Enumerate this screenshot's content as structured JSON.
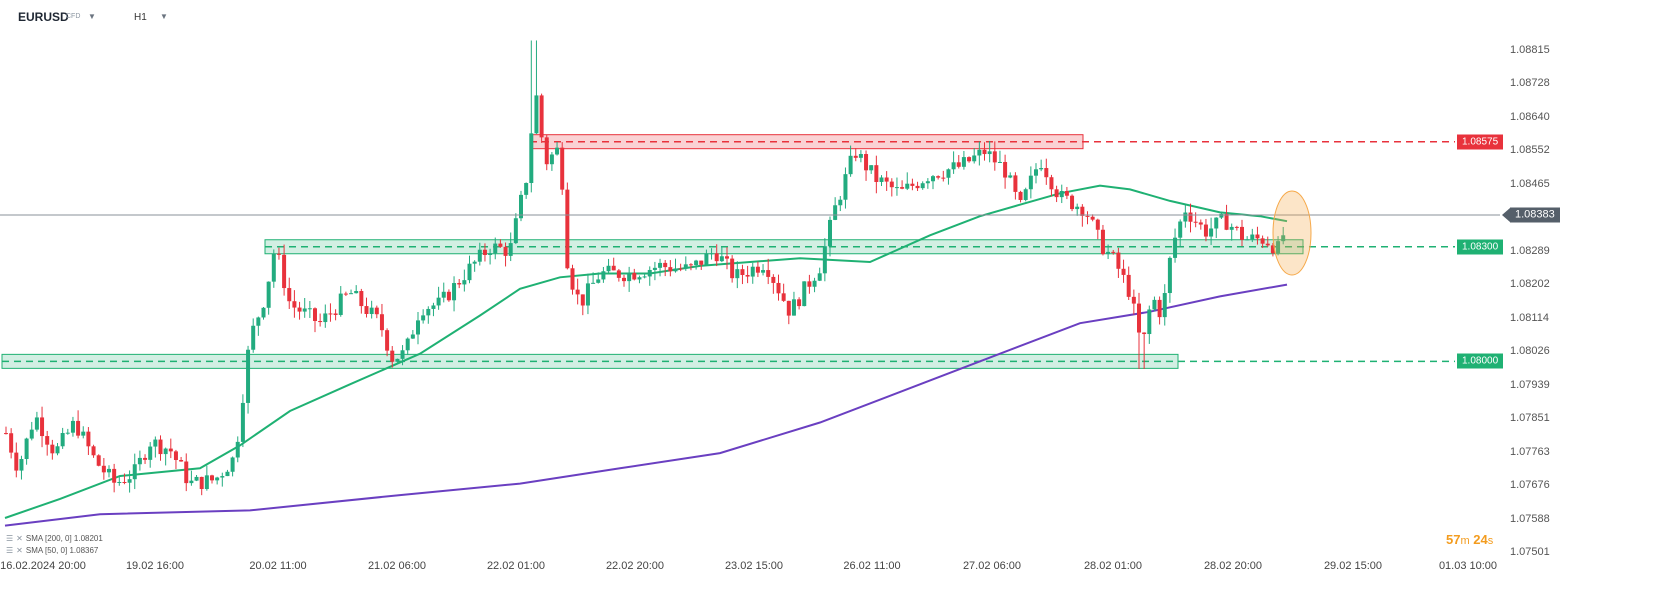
{
  "header": {
    "symbol": "EURUSD",
    "symbol_type": "CFD",
    "timeframe": "H1"
  },
  "colors": {
    "bull": "#22ab7f",
    "bear": "#e8323c",
    "sma50": "#1fb173",
    "sma200": "#6a3fc1",
    "resistance": "#e8323c",
    "support": "#1fb173",
    "current": "#555f6a",
    "highlight": "#f6a94a"
  },
  "y_axis": {
    "ticks": [
      "1.08815",
      "1.08728",
      "1.08640",
      "1.08552",
      "1.08465",
      "1.08383",
      "1.08289",
      "1.08202",
      "1.08114",
      "1.08026",
      "1.07939",
      "1.07851",
      "1.07763",
      "1.07676",
      "1.07588",
      "1.07501"
    ]
  },
  "x_axis": {
    "ticks": [
      "16.02.2024 20:00",
      "19.02 16:00",
      "20.02 11:00",
      "21.02 06:00",
      "22.02 01:00",
      "22.02 20:00",
      "23.02 15:00",
      "26.02 11:00",
      "27.02 06:00",
      "28.02 01:00",
      "28.02 20:00",
      "29.02 15:00",
      "01.03 10:00"
    ]
  },
  "levels": {
    "resistance": "1.08575",
    "current": "1.08383",
    "support_1": "1.08300",
    "support_2": "1.08000"
  },
  "legend": {
    "sma200": "SMA [200, 0] 1.08201",
    "sma50": "SMA [50, 0] 1.08367"
  },
  "timer": {
    "minutes": "57",
    "minutes_unit": "m",
    "seconds": "24",
    "seconds_unit": "s"
  },
  "chart_data": {
    "type": "candlestick",
    "ylim": [
      1.07501,
      1.08885
    ],
    "series": [
      {
        "name": "SMA [200, 0] 1.08201",
        "values_hint": "rising from ~1.0756 to 1.08201"
      },
      {
        "name": "SMA [50, 0] 1.08367",
        "values_hint": "rising from ~1.0759 to 1.08367"
      }
    ]
  }
}
